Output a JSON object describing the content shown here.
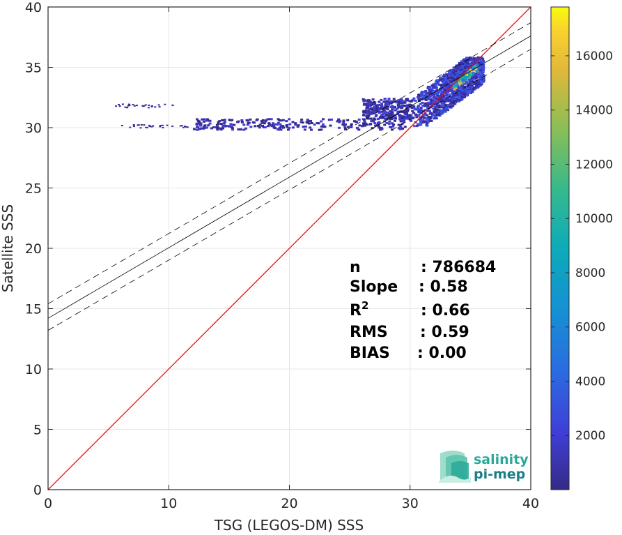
{
  "chart_data": {
    "type": "heatmap",
    "xlabel": "TSG (LEGOS-DM) SSS",
    "ylabel": "Satellite SSS",
    "xlim": [
      0,
      40
    ],
    "ylim": [
      0,
      40
    ],
    "xticks": [
      "0",
      "10",
      "20",
      "30",
      "40"
    ],
    "yticks": [
      "0",
      "5",
      "10",
      "15",
      "20",
      "25",
      "30",
      "35",
      "40"
    ],
    "grid": true,
    "colorbar": {
      "ticks": [
        "2000",
        "4000",
        "6000",
        "8000",
        "10000",
        "12000",
        "14000",
        "16000"
      ],
      "tick_values": [
        2000,
        4000,
        6000,
        8000,
        10000,
        12000,
        14000,
        16000
      ],
      "range": [
        0,
        17800
      ],
      "colormap": "parula"
    },
    "lines": [
      {
        "kind": "identity",
        "color": "#ff0000",
        "x": [
          0,
          40
        ],
        "y": [
          0,
          40
        ]
      },
      {
        "kind": "regression",
        "color": "#000000",
        "style": "solid",
        "x": [
          0,
          40
        ],
        "y": [
          14.2,
          37.6
        ]
      },
      {
        "kind": "regression-upper",
        "color": "#000000",
        "style": "dashed",
        "x": [
          0,
          40
        ],
        "y": [
          15.4,
          38.7
        ]
      },
      {
        "kind": "regression-lower",
        "color": "#000000",
        "style": "dashed",
        "x": [
          0,
          40
        ],
        "y": [
          13.2,
          36.5
        ]
      }
    ],
    "density_regions": [
      {
        "x": [
          29.5,
          36.0
        ],
        "y": [
          30.2,
          35.9
        ],
        "level": "low-medium"
      },
      {
        "x": [
          33.5,
          35.5
        ],
        "y": [
          33.5,
          35.3
        ],
        "level": "high"
      },
      {
        "x": [
          12.0,
          29.5
        ],
        "y": [
          29.9,
          30.8
        ],
        "level": "low"
      },
      {
        "x": [
          26.0,
          30.0
        ],
        "y": [
          30.8,
          32.5
        ],
        "level": "low"
      },
      {
        "x": [
          5.5,
          10.5
        ],
        "y": [
          31.7,
          32.0
        ],
        "level": "sparse"
      },
      {
        "x": [
          6.0,
          11.5
        ],
        "y": [
          30.0,
          30.3
        ],
        "level": "sparse"
      }
    ],
    "stats": [
      {
        "label": "n",
        "value": ": 786684"
      },
      {
        "label": "Slope",
        "value": ": 0.58"
      },
      {
        "label": "R",
        "sup": "2",
        "value": ": 0.66"
      },
      {
        "label": "RMS",
        "value": ": 0.59"
      },
      {
        "label": "BIAS",
        "value": ": 0.00"
      }
    ]
  },
  "logo": {
    "line1": "salinity",
    "line2": "pi-mep",
    "color1": "#2aa99a",
    "color2": "#1a7f88"
  }
}
